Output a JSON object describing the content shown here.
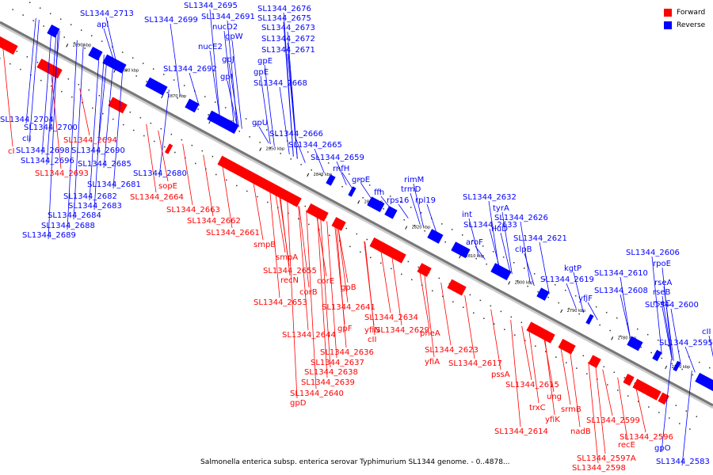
{
  "caption": "Salmonella enterica subsp. enterica serovar Typhimurium SL1344 genome. - 0..4878...",
  "legend": [
    {
      "label": "Forward",
      "color": "#ff0000"
    },
    {
      "label": "Reverse",
      "color": "#0000ff"
    }
  ],
  "colors": {
    "forward": "#ff0000",
    "reverse": "#0000ff",
    "backbone": "#777777"
  },
  "ticks": [
    "2890 kbp",
    "2880 kbp",
    "2870 kbp",
    "2860 kbp",
    "2850 kbp",
    "2840 kbp",
    "2830 kbp",
    "2820 kbp",
    "2810 kbp",
    "2800 kbp",
    "2790 kbp",
    "2780 kbp",
    "2770 kbp"
  ],
  "reverse_labels": [
    "SL1344_2713",
    "apl",
    "SL1344_2695",
    "SL1344_2699",
    "SL1344_2691",
    "nucD2",
    "gpW",
    "nucE2",
    "gpJ",
    "gpI",
    "SL1344_2692",
    "SL1344_2676",
    "SL1344_2675",
    "SL1344_2673",
    "SL1344_2672",
    "SL1344_2671",
    "gpE",
    "gpE",
    "SL1344_2668",
    "gpU",
    "SL1344_2666",
    "SL1344_2665",
    "SL1344_2659",
    "rnfH",
    "grpE",
    "ffh",
    "rimM",
    "trmD",
    "rps16",
    "rpl19",
    "SL1344_2632",
    "int",
    "tyrA",
    "SL1344_2633",
    "SL1344_2626",
    "aroF",
    "rluD",
    "SL1344_2621",
    "clpB",
    "kgtP",
    "SL1344_2619",
    "yfiF",
    "SL1344_2606",
    "rpoE",
    "SL1344_2610",
    "rseA",
    "SL1344_2608",
    "rseB",
    "rseC",
    "SL1344_2600",
    "cII",
    "SL1344_2595",
    "SL1344_2704",
    "SL1344_2700",
    "cII",
    "SL1344_2698",
    "SL1344_2696",
    "SL1344_2690",
    "SL1344_2685",
    "SL1344_2681",
    "SL1344_2680",
    "SL1344_2682",
    "SL1344_2683",
    "SL1344_2684",
    "SL1344_2688",
    "SL1344_2689",
    "gpO",
    "SL1344_2583"
  ],
  "forward_labels": [
    "SL1344_2694",
    "cI",
    "SL1344_2693",
    "sopE",
    "SL1344_2664",
    "SL1344_2663",
    "SL1344_2662",
    "SL1344_2661",
    "smpB",
    "smpA",
    "SL1344_2655",
    "recN",
    "corE",
    "corB",
    "SL1344_2653",
    "gpB",
    "SL1344_2641",
    "SL1344_2634",
    "gpF",
    "SL1344_2644",
    "cII",
    "yfiN",
    "SL1344_2629",
    "SL1344_2636",
    "pheA",
    "SL1344_2637",
    "SL1344_2638",
    "SL1344_2639",
    "SL1344_2640",
    "gpD",
    "SL1344_2623",
    "yfiA",
    "SL1344_2617",
    "pssA",
    "SL1344_2615",
    "ung",
    "trxC",
    "yfiK",
    "srmB",
    "SL1344_2614",
    "nadB",
    "SL1344_2599",
    "recE",
    "SL1344_2596",
    "SL1344_2597A",
    "SL1344_2598"
  ]
}
